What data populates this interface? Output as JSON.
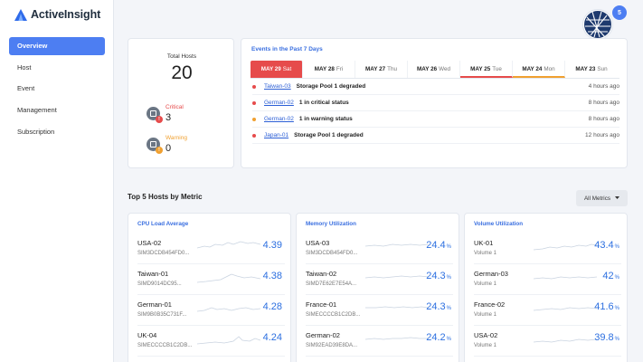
{
  "app": {
    "name": "ActiveInsight"
  },
  "sidebar": {
    "items": [
      {
        "label": "Overview",
        "active": true
      },
      {
        "label": "Host"
      },
      {
        "label": "Event"
      },
      {
        "label": "Management"
      },
      {
        "label": "Subscription"
      }
    ]
  },
  "header": {
    "notification_count": "5",
    "avatar_icon": "globe-icon"
  },
  "hosts_summary": {
    "total_label": "Total Hosts",
    "total_value": "20",
    "critical_label": "Critical",
    "critical_value": "3",
    "critical_badge": "!",
    "warning_label": "Warning",
    "warning_value": "0",
    "warning_badge": "!"
  },
  "events": {
    "title": "Events in the Past 7 Days",
    "tabs": [
      {
        "date": "MAY 29",
        "day": "Sat"
      },
      {
        "date": "MAY 28",
        "day": "Fri"
      },
      {
        "date": "MAY 27",
        "day": "Thu"
      },
      {
        "date": "MAY 26",
        "day": "Wed"
      },
      {
        "date": "MAY 25",
        "day": "Tue"
      },
      {
        "date": "MAY 24",
        "day": "Mon"
      },
      {
        "date": "MAY 23",
        "day": "Sun"
      }
    ],
    "rows": [
      {
        "host": "Taiwan-03",
        "message": "Storage Pool 1 degraded",
        "time": "4 hours ago",
        "severity": "critical"
      },
      {
        "host": "German-02",
        "message": "1 in critical status",
        "time": "8 hours ago",
        "severity": "critical"
      },
      {
        "host": "German-02",
        "message": "1 in warning status",
        "time": "8 hours ago",
        "severity": "warning"
      },
      {
        "host": "Japan-01",
        "message": "Storage Pool 1 degraded",
        "time": "12 hours ago",
        "severity": "critical"
      }
    ]
  },
  "top5": {
    "title": "Top 5 Hosts by Metric",
    "filter_label": "All Metrics",
    "cards": [
      {
        "title": "CPU Load Average",
        "rows": [
          {
            "name": "USA-02",
            "sub": "SIM3DCDB454FD0...",
            "value": "4.39",
            "unit": ""
          },
          {
            "name": "Taiwan-01",
            "sub": "SIMD9014DC95...",
            "value": "4.38",
            "unit": ""
          },
          {
            "name": "German-01",
            "sub": "SIM9B0B35C731F...",
            "value": "4.28",
            "unit": ""
          },
          {
            "name": "UK-04",
            "sub": "SIMECCCCB1C2DB...",
            "value": "4.24",
            "unit": ""
          }
        ]
      },
      {
        "title": "Memory Utilization",
        "rows": [
          {
            "name": "USA-03",
            "sub": "SIM3DCDB454FD0...",
            "value": "24.4",
            "unit": "%"
          },
          {
            "name": "Taiwan-02",
            "sub": "SIMD7E62E7E54A...",
            "value": "24.3",
            "unit": "%"
          },
          {
            "name": "France-01",
            "sub": "SIMECCCCB1C2DB...",
            "value": "24.3",
            "unit": "%"
          },
          {
            "name": "German-02",
            "sub": "SIM92EAD39E8DA...",
            "value": "24.2",
            "unit": "%"
          }
        ]
      },
      {
        "title": "Volume Utilization",
        "rows": [
          {
            "name": "UK-01",
            "sub": "Volume 1",
            "value": "43.4",
            "unit": "%"
          },
          {
            "name": "German-03",
            "sub": "Volume 1",
            "value": "42",
            "unit": "%"
          },
          {
            "name": "France-02",
            "sub": "Volume 1",
            "value": "41.6",
            "unit": "%"
          },
          {
            "name": "USA-02",
            "sub": "Volume 1",
            "value": "39.8",
            "unit": "%"
          }
        ]
      }
    ]
  },
  "colors": {
    "accent": "#4d7ef2",
    "critical": "#e64b4b",
    "warning": "#f0a030",
    "value": "#2c6fe0"
  }
}
